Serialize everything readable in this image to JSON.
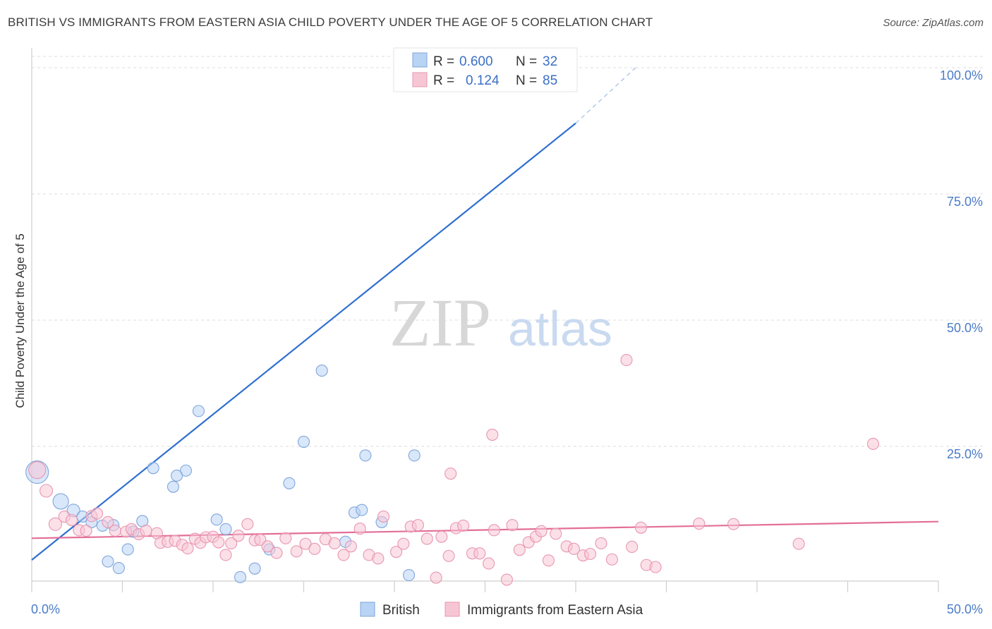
{
  "title": "BRITISH VS IMMIGRANTS FROM EASTERN ASIA CHILD POVERTY UNDER THE AGE OF 5 CORRELATION CHART",
  "source": "Source: ZipAtlas.com",
  "watermark": {
    "zip": "ZIP",
    "atlas": "atlas"
  },
  "colors": {
    "british_fill": "#b9d3f5",
    "british_stroke": "#7fa6db",
    "british_line": "#2f6fcf",
    "eastasia_fill": "#f7c6d5",
    "eastasia_stroke": "#e896b2",
    "eastasia_line": "#e36e98",
    "grid": "#dcdcdc",
    "axis_label": "#4a7cc8"
  },
  "legend": {
    "r_label": "R =",
    "n_label": "N =",
    "british": {
      "r": "0.600",
      "n": "32"
    },
    "eastasia": {
      "r": "0.124",
      "n": "85"
    }
  },
  "chart_data": {
    "type": "scatter",
    "title": "BRITISH VS IMMIGRANTS FROM EASTERN ASIA CHILD POVERTY UNDER THE AGE OF 5 CORRELATION CHART",
    "xlabel": "",
    "ylabel": "Child Poverty Under the Age of 5",
    "xlim": [
      0,
      50
    ],
    "ylim": [
      0,
      100
    ],
    "x_tick_labels": [
      "0.0%",
      "50.0%"
    ],
    "y_ticks": [
      25,
      50,
      75,
      100
    ],
    "y_tick_labels": [
      "25.0%",
      "50.0%",
      "75.0%",
      "100.0%"
    ],
    "grid": true,
    "legend_position": "top-center",
    "series": [
      {
        "name": "British",
        "color": "#b9d3f5",
        "trend": {
          "x": [
            0,
            30
          ],
          "y": [
            2.5,
            89
          ]
        },
        "trend_dashed": {
          "x": [
            30,
            33.3
          ],
          "y": [
            89,
            100
          ]
        },
        "points": [
          [
            0.3,
            19.9,
            16
          ],
          [
            1.6,
            14.1,
            11
          ],
          [
            2.3,
            12.3,
            9
          ],
          [
            2.8,
            11.1,
            8
          ],
          [
            3.3,
            10.0,
            8
          ],
          [
            3.9,
            9.3,
            8
          ],
          [
            4.5,
            9.4,
            8
          ],
          [
            5.3,
            4.6,
            8
          ],
          [
            4.2,
            2.2,
            8
          ],
          [
            5.6,
            8.1,
            8
          ],
          [
            4.8,
            0.9,
            8
          ],
          [
            6.7,
            20.7,
            8
          ],
          [
            7.8,
            17.0,
            8
          ],
          [
            8.5,
            20.2,
            8
          ],
          [
            8.0,
            19.2,
            8
          ],
          [
            6.1,
            10.2,
            8
          ],
          [
            9.2,
            32.0,
            8
          ],
          [
            10.2,
            10.5,
            8
          ],
          [
            10.7,
            8.6,
            8
          ],
          [
            11.5,
            -0.9,
            8
          ],
          [
            12.3,
            0.8,
            8
          ],
          [
            13.1,
            4.6,
            8
          ],
          [
            14.2,
            17.7,
            8
          ],
          [
            15.0,
            25.9,
            8
          ],
          [
            16.0,
            40.0,
            8
          ],
          [
            17.3,
            6.1,
            8
          ],
          [
            17.8,
            11.9,
            8
          ],
          [
            18.4,
            23.2,
            8
          ],
          [
            18.2,
            12.4,
            8
          ],
          [
            19.3,
            10.0,
            8
          ],
          [
            20.8,
            -0.5,
            8
          ],
          [
            21.1,
            23.2,
            8
          ]
        ]
      },
      {
        "name": "Immigrants from Eastern Asia",
        "color": "#f7c6d5",
        "trend": {
          "x": [
            0,
            50
          ],
          "y": [
            6.8,
            10.1
          ]
        },
        "points": [
          [
            0.3,
            20.3,
            12
          ],
          [
            0.8,
            16.2,
            9
          ],
          [
            1.3,
            9.6,
            9
          ],
          [
            1.8,
            11.1,
            8
          ],
          [
            2.2,
            10.4,
            8
          ],
          [
            2.6,
            8.4,
            8
          ],
          [
            3.0,
            8.3,
            8
          ],
          [
            3.3,
            11.2,
            8
          ],
          [
            3.6,
            11.7,
            8
          ],
          [
            4.2,
            10.0,
            8
          ],
          [
            4.6,
            8.3,
            8
          ],
          [
            5.2,
            8.1,
            8
          ],
          [
            5.5,
            8.6,
            8
          ],
          [
            5.9,
            7.6,
            8
          ],
          [
            6.3,
            8.3,
            8
          ],
          [
            6.9,
            7.8,
            8
          ],
          [
            7.1,
            5.9,
            8
          ],
          [
            7.5,
            6.1,
            8
          ],
          [
            7.9,
            6.3,
            8
          ],
          [
            8.3,
            5.5,
            8
          ],
          [
            8.6,
            4.8,
            8
          ],
          [
            9.0,
            6.7,
            8
          ],
          [
            9.3,
            5.9,
            8
          ],
          [
            9.6,
            7.0,
            8
          ],
          [
            10.0,
            7.1,
            8
          ],
          [
            10.3,
            6.0,
            8
          ],
          [
            10.7,
            3.5,
            8
          ],
          [
            11.0,
            5.8,
            8
          ],
          [
            11.4,
            7.3,
            8
          ],
          [
            11.9,
            9.6,
            8
          ],
          [
            12.3,
            6.4,
            8
          ],
          [
            12.6,
            6.5,
            8
          ],
          [
            13.0,
            5.2,
            8
          ],
          [
            13.5,
            3.9,
            8
          ],
          [
            14.0,
            6.8,
            8
          ],
          [
            14.6,
            4.2,
            8
          ],
          [
            15.1,
            5.7,
            8
          ],
          [
            15.6,
            4.7,
            8
          ],
          [
            16.2,
            6.6,
            8
          ],
          [
            16.7,
            5.8,
            8
          ],
          [
            17.2,
            3.5,
            8
          ],
          [
            17.6,
            5.2,
            8
          ],
          [
            18.1,
            8.7,
            8
          ],
          [
            18.6,
            3.5,
            8
          ],
          [
            19.1,
            2.8,
            8
          ],
          [
            19.4,
            11.1,
            8
          ],
          [
            20.1,
            4.1,
            8
          ],
          [
            20.5,
            5.7,
            8
          ],
          [
            20.9,
            9.1,
            8
          ],
          [
            21.3,
            9.4,
            8
          ],
          [
            21.8,
            6.7,
            8
          ],
          [
            22.3,
            -1.0,
            8
          ],
          [
            22.6,
            7.1,
            8
          ],
          [
            23.0,
            3.3,
            8
          ],
          [
            23.4,
            8.8,
            8
          ],
          [
            23.8,
            9.3,
            8
          ],
          [
            24.3,
            3.8,
            8
          ],
          [
            24.7,
            3.8,
            8
          ],
          [
            25.2,
            1.8,
            8
          ],
          [
            25.5,
            8.4,
            8
          ],
          [
            26.2,
            -1.4,
            8
          ],
          [
            26.5,
            9.4,
            8
          ],
          [
            26.9,
            4.5,
            8
          ],
          [
            27.4,
            6.0,
            8
          ],
          [
            27.8,
            7.1,
            8
          ],
          [
            28.1,
            8.2,
            8
          ],
          [
            28.5,
            2.4,
            8
          ],
          [
            28.9,
            7.7,
            8
          ],
          [
            29.5,
            5.2,
            8
          ],
          [
            29.9,
            4.7,
            8
          ],
          [
            30.4,
            3.4,
            8
          ],
          [
            30.8,
            3.7,
            8
          ],
          [
            31.4,
            5.8,
            8
          ],
          [
            32.0,
            2.6,
            8
          ],
          [
            32.8,
            42.1,
            8
          ],
          [
            33.1,
            5.1,
            8
          ],
          [
            33.6,
            8.9,
            8
          ],
          [
            33.9,
            1.5,
            8
          ],
          [
            34.4,
            1.1,
            8
          ],
          [
            25.4,
            27.3,
            8
          ],
          [
            23.1,
            19.6,
            8
          ],
          [
            36.8,
            9.7,
            8
          ],
          [
            38.7,
            9.6,
            8
          ],
          [
            42.3,
            5.7,
            8
          ],
          [
            46.4,
            25.5,
            8
          ]
        ]
      }
    ]
  }
}
